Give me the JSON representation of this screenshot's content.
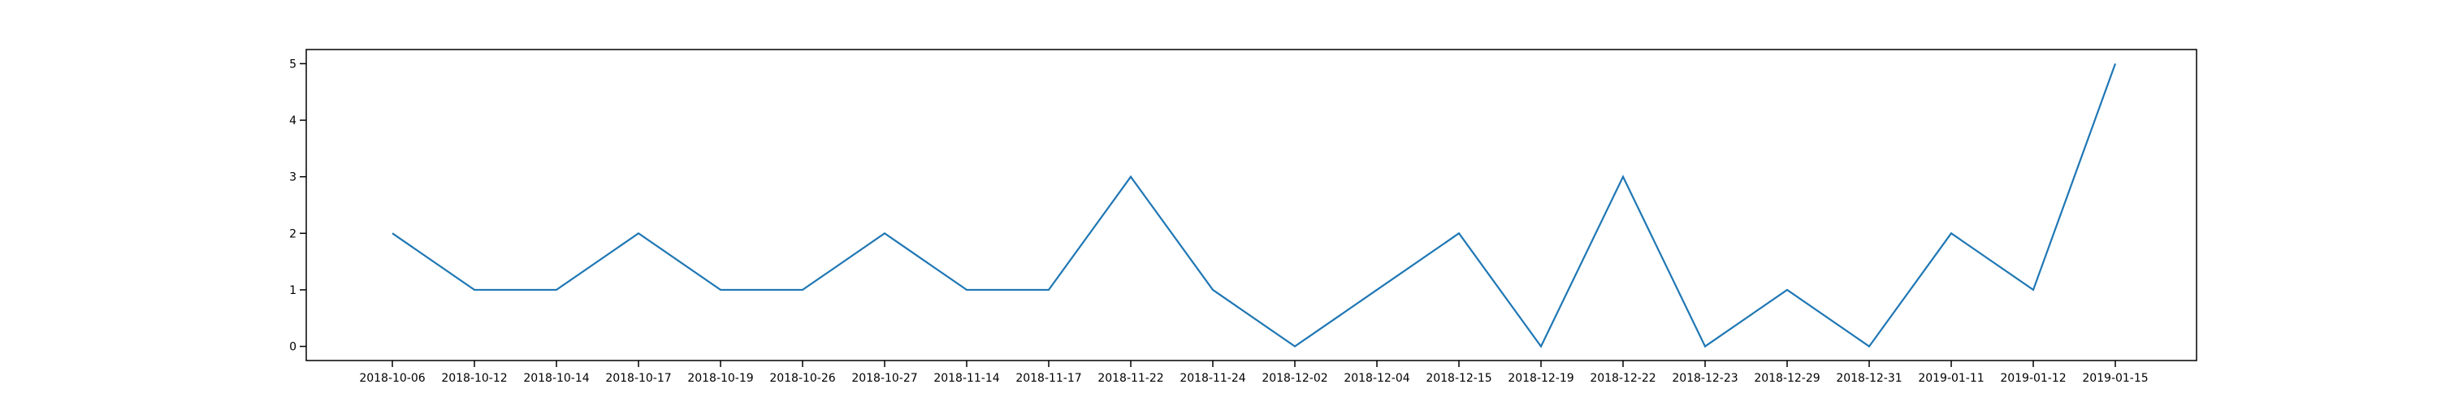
{
  "chart_data": {
    "type": "line",
    "categories": [
      "2018-10-06",
      "2018-10-12",
      "2018-10-14",
      "2018-10-17",
      "2018-10-19",
      "2018-10-26",
      "2018-10-27",
      "2018-11-14",
      "2018-11-17",
      "2018-11-22",
      "2018-11-24",
      "2018-12-02",
      "2018-12-04",
      "2018-12-15",
      "2018-12-19",
      "2018-12-22",
      "2018-12-23",
      "2018-12-29",
      "2018-12-31",
      "2019-01-11",
      "2019-01-12",
      "2019-01-15"
    ],
    "series": [
      {
        "values": [
          2,
          1,
          1,
          2,
          1,
          1,
          2,
          1,
          1,
          3,
          1,
          0,
          1,
          2,
          0,
          3,
          0,
          1,
          0,
          2,
          1,
          5
        ],
        "color": "#1f77b4"
      }
    ],
    "y_ticks": [
      0,
      1,
      2,
      3,
      4,
      5
    ],
    "ylim": [
      -0.25,
      5.25
    ],
    "grid": false,
    "title": "",
    "xlabel": "",
    "ylabel": ""
  }
}
